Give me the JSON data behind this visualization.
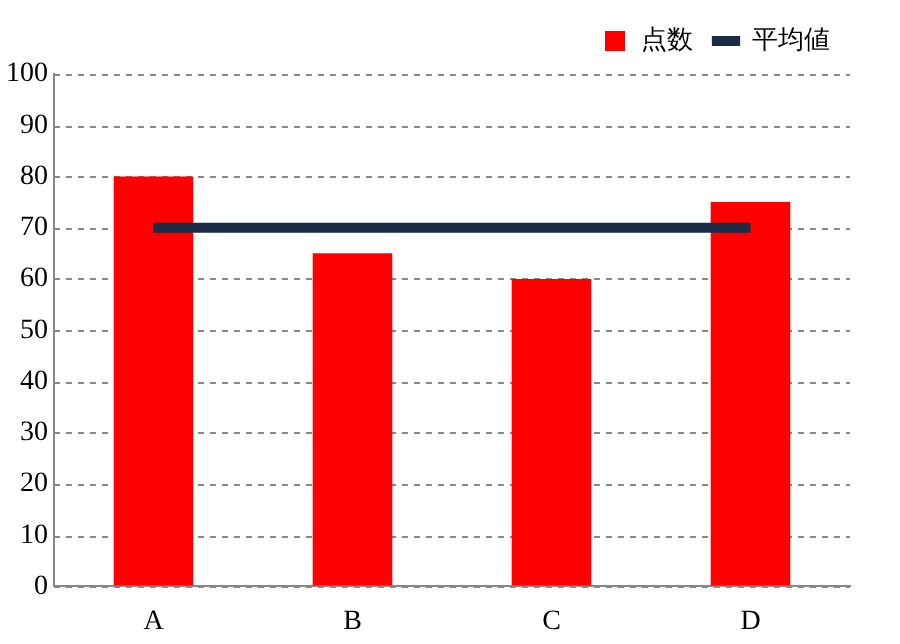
{
  "chart_data": {
    "type": "bar",
    "categories": [
      "A",
      "B",
      "C",
      "D"
    ],
    "series": [
      {
        "name": "点数",
        "color": "#ff0000",
        "values": [
          80,
          65,
          60,
          75
        ]
      },
      {
        "name": "平均値",
        "type": "line",
        "color": "#1b2a47",
        "values": [
          70,
          70,
          70,
          70
        ],
        "marker": "none",
        "line_style": "solid"
      }
    ],
    "ylim": [
      0,
      100
    ],
    "yticks": [
      0,
      10,
      20,
      30,
      40,
      50,
      60,
      70,
      80,
      90,
      100
    ],
    "grid": "y",
    "legend": "top right"
  }
}
